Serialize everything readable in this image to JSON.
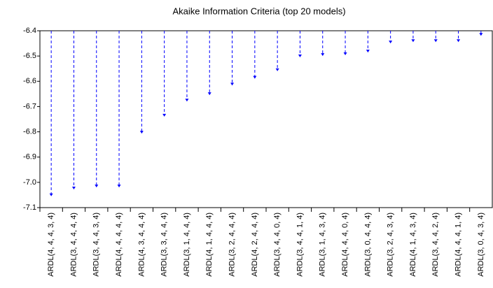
{
  "chart_data": {
    "type": "arrow",
    "title": "Akaike Information Criteria (top 20 models)",
    "categories": [
      "ARDL(4, 4, 4, 3, 4)",
      "ARDL(3, 4, 4, 4, 4)",
      "ARDL(3, 4, 4, 3, 4)",
      "ARDL(4, 4, 4, 4, 4)",
      "ARDL(4, 3, 4, 4, 4)",
      "ARDL(3, 3, 4, 4, 4)",
      "ARDL(3, 1, 4, 4, 4)",
      "ARDL(4, 1, 4, 4, 4)",
      "ARDL(3, 2, 4, 4, 4)",
      "ARDL(4, 2, 4, 4, 4)",
      "ARDL(3, 4, 4, 0, 4)",
      "ARDL(3, 4, 4, 1, 4)",
      "ARDL(3, 1, 4, 3, 4)",
      "ARDL(4, 4, 4, 0, 4)",
      "ARDL(3, 0, 4, 4, 4)",
      "ARDL(3, 2, 4, 3, 4)",
      "ARDL(4, 1, 4, 3, 4)",
      "ARDL(3, 4, 4, 2, 4)",
      "ARDL(4, 4, 4, 1, 4)",
      "ARDL(3, 0, 4, 3, 4)"
    ],
    "values": [
      -7.055,
      -7.028,
      -7.02,
      -7.02,
      -6.807,
      -6.74,
      -6.68,
      -6.655,
      -6.617,
      -6.59,
      -6.56,
      -6.505,
      -6.5,
      -6.497,
      -6.486,
      -6.45,
      -6.445,
      -6.445,
      -6.445,
      -6.42
    ],
    "color": "#0000ff",
    "ylim": [
      -7.1,
      -6.4
    ],
    "yticks": [
      -6.4,
      -6.5,
      -6.6,
      -6.7,
      -6.8,
      -6.9,
      {
        "value": -7,
        "label": "-7.0"
      },
      -7.1
    ]
  }
}
